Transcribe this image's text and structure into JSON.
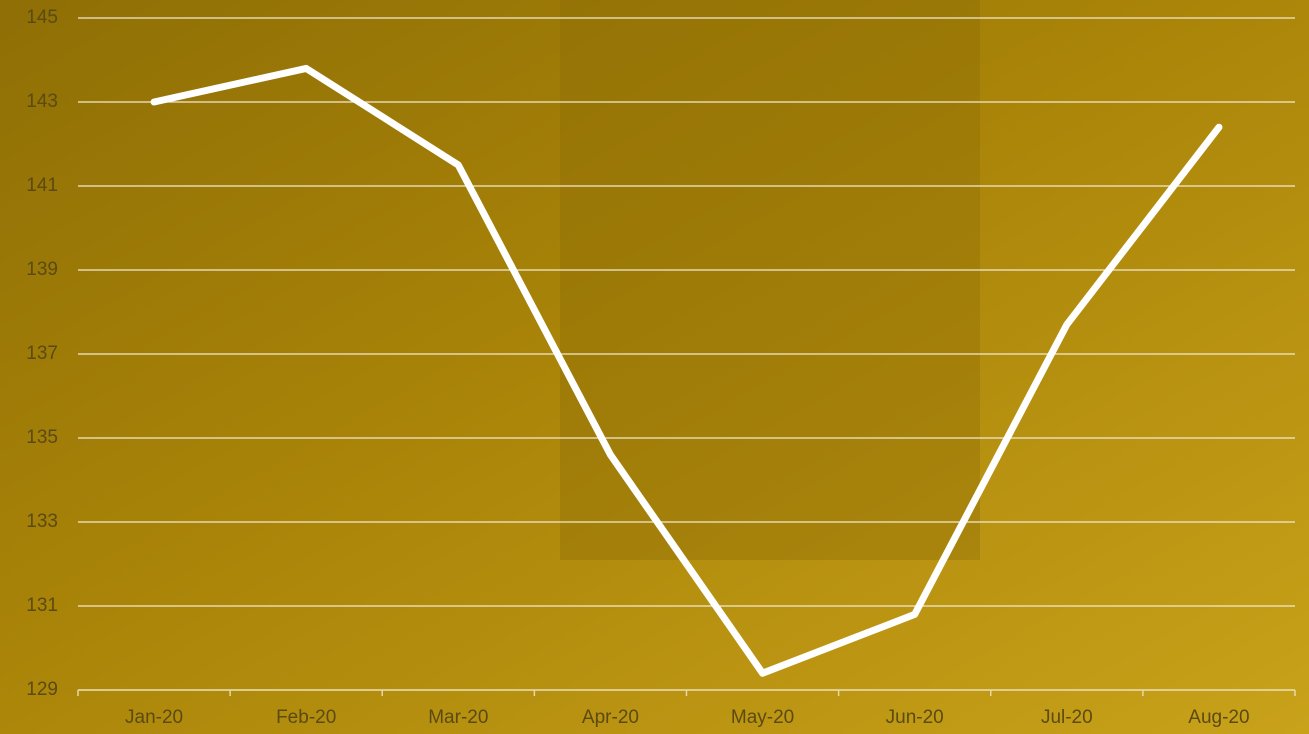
{
  "chart_data": {
    "type": "line",
    "categories": [
      "Jan-20",
      "Feb-20",
      "Mar-20",
      "Apr-20",
      "May-20",
      "Jun-20",
      "Jul-20",
      "Aug-20"
    ],
    "series": [
      {
        "color": "#ffffff",
        "values": [
          143.0,
          143.8,
          141.5,
          134.6,
          129.4,
          130.8,
          137.7,
          142.4
        ]
      }
    ],
    "ylim": [
      129,
      145
    ],
    "yticks": [
      129,
      131,
      133,
      135,
      137,
      139,
      141,
      143,
      145
    ],
    "grid": true
  }
}
